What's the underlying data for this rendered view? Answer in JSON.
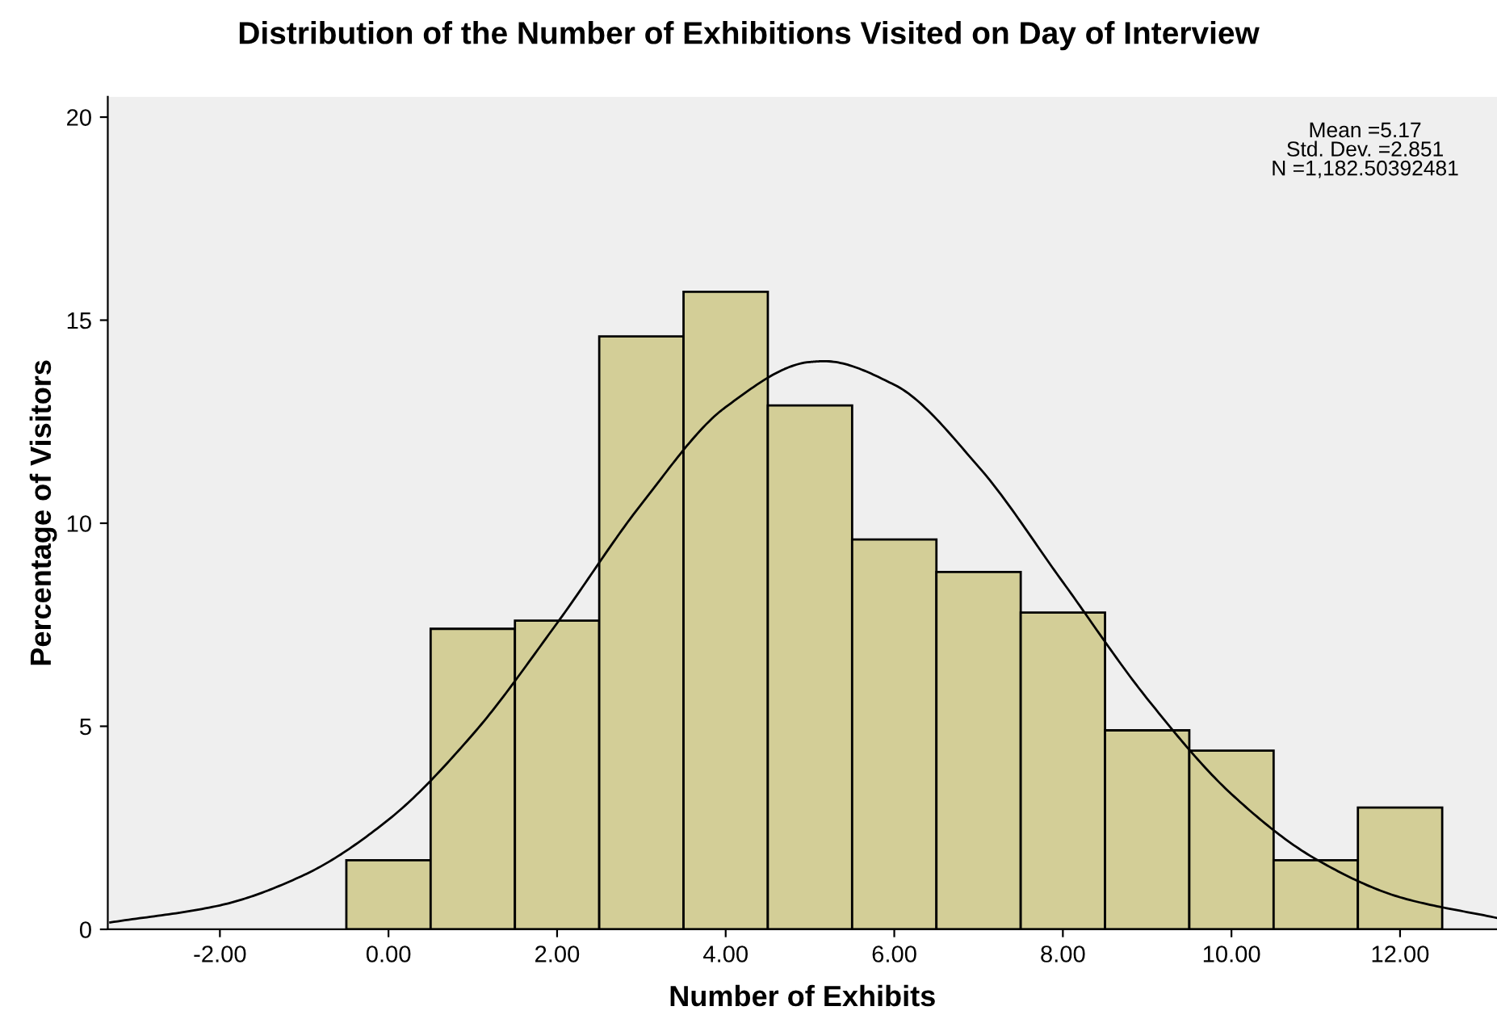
{
  "chart_data": {
    "type": "histogram",
    "title": "Distribution of the Number of Exhibitions Visited on Day of Interview",
    "xlabel": "Number of Exhibits",
    "ylabel": "Percentage of Visitors",
    "bins": [
      -0.5,
      0.5,
      1.5,
      2.5,
      3.5,
      4.5,
      5.5,
      6.5,
      7.5,
      8.5,
      9.5,
      10.5,
      11.5,
      12.5
    ],
    "values": [
      1.7,
      7.4,
      7.6,
      14.6,
      15.7,
      12.9,
      9.6,
      8.8,
      7.8,
      4.9,
      4.4,
      1.7,
      3.0
    ],
    "color": "#d3ce97",
    "series": [
      {
        "type": "line",
        "color": "#000000",
        "x": [
          -3.3,
          -2,
          -1,
          0,
          1,
          2,
          3,
          4,
          5,
          5.17,
          6,
          7,
          8,
          9,
          10,
          11,
          12,
          13.15
        ],
        "values": [
          0.17,
          0.59,
          1.34,
          2.7,
          4.8,
          7.54,
          10.47,
          12.86,
          13.97,
          13.99,
          13.41,
          11.39,
          8.55,
          5.68,
          3.33,
          1.73,
          0.79,
          0.28
        ]
      }
    ],
    "annotations": [
      "Mean =5.17\nStd. Dev. =2.851\nN =1,182.50392481"
    ],
    "xlim": [
      -3.33,
      13.15
    ],
    "ylim": [
      0,
      20.5
    ],
    "xticks": [
      {
        "value": -2,
        "label": "-2.00"
      },
      {
        "value": 0,
        "label": "0.00"
      },
      {
        "value": 2,
        "label": "2.00"
      },
      {
        "value": 4,
        "label": "4.00"
      },
      {
        "value": 6,
        "label": "6.00"
      },
      {
        "value": 8,
        "label": "8.00"
      },
      {
        "value": 10,
        "label": "10.00"
      },
      {
        "value": 12,
        "label": "12.00"
      }
    ],
    "yticks": [
      0,
      5,
      10,
      15,
      20
    ],
    "grid": false,
    "legend": false
  }
}
